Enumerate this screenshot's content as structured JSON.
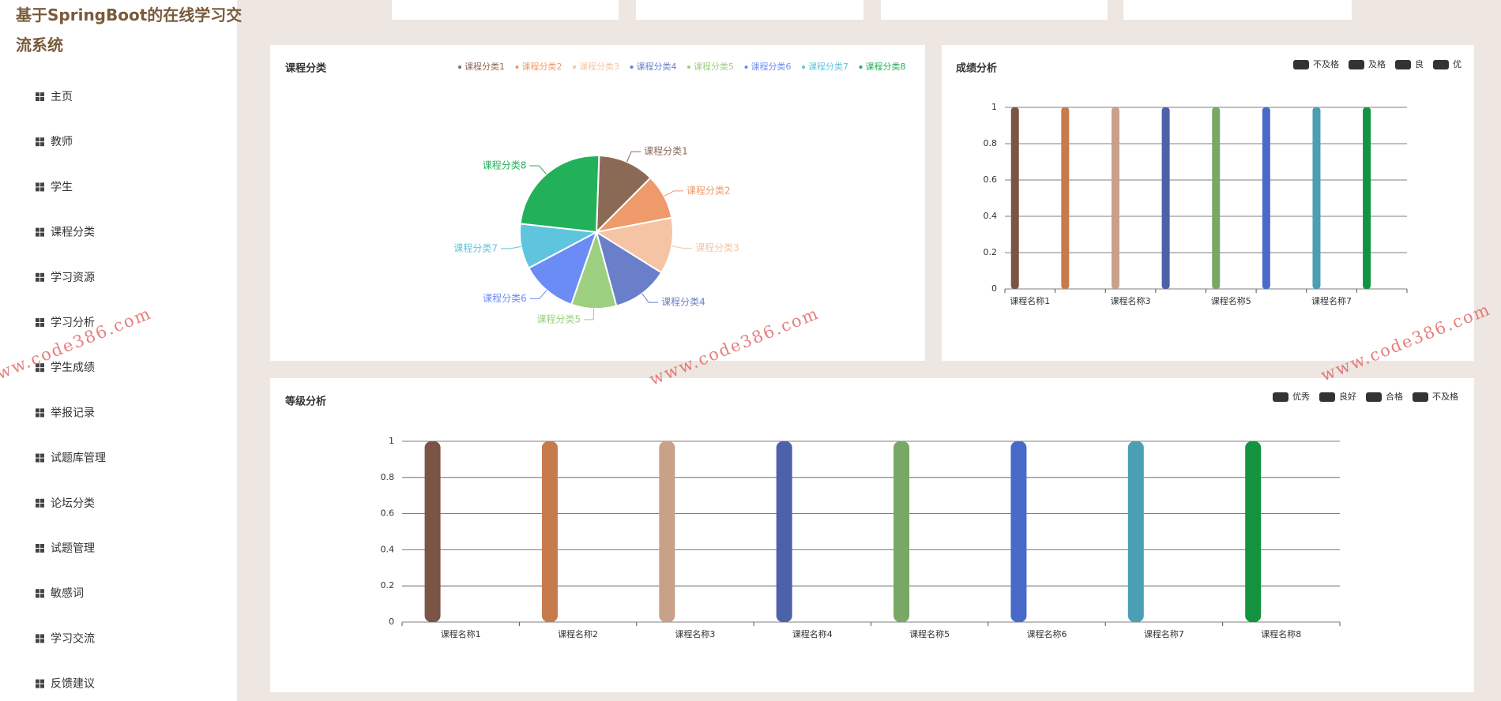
{
  "sidebar": {
    "title": "基于SpringBoot的在线学习交流系统",
    "menu": [
      "主页",
      "教师",
      "学生",
      "课程分类",
      "学习资源",
      "学习分析",
      "学生成绩",
      "举报记录",
      "试题库管理",
      "论坛分类",
      "试题管理",
      "敏感词",
      "学习交流",
      "反馈建议"
    ]
  },
  "watermark": "www.code386.com",
  "chart_data": [
    {
      "type": "pie",
      "title": "课程分类",
      "categories": [
        "课程分类1",
        "课程分类2",
        "课程分类3",
        "课程分类4",
        "课程分类5",
        "课程分类6",
        "课程分类7",
        "课程分类8"
      ],
      "values": [
        5,
        4,
        5,
        5,
        4,
        5,
        4,
        10
      ],
      "colors": [
        "#8b6a55",
        "#ee9a6a",
        "#f5c4a5",
        "#6a7fc9",
        "#9ccf7f",
        "#6b8cf5",
        "#5fc5de",
        "#22b159"
      ]
    },
    {
      "type": "bar",
      "title": "成绩分析",
      "categories": [
        "课程名称1",
        null,
        "课程名称3",
        null,
        "课程名称5",
        null,
        "课程名称7",
        null
      ],
      "values": [
        1,
        1,
        1,
        1,
        1,
        1,
        1,
        1
      ],
      "colors": [
        "#7a5444",
        "#c77a4c",
        "#c9a088",
        "#4d61a8",
        "#79a866",
        "#4a6acb",
        "#4a9fb5",
        "#139340"
      ],
      "legend": [
        "不及格",
        "及格",
        "良",
        "优"
      ],
      "legend_color": "#333333",
      "ylim": [
        0,
        1
      ],
      "yticks": [
        0,
        0.2,
        0.4,
        0.6,
        0.8,
        1
      ],
      "grid": true
    },
    {
      "type": "bar",
      "title": "等级分析",
      "categories": [
        "课程名称1",
        "课程名称2",
        "课程名称3",
        "课程名称4",
        "课程名称5",
        "课程名称6",
        "课程名称7",
        "课程名称8"
      ],
      "values": [
        1,
        1,
        1,
        1,
        1,
        1,
        1,
        1
      ],
      "colors": [
        "#7a5444",
        "#c77a4c",
        "#c9a088",
        "#4d61a8",
        "#79a866",
        "#4a6acb",
        "#4a9fb5",
        "#139340"
      ],
      "legend": [
        "优秀",
        "良好",
        "合格",
        "不及格"
      ],
      "legend_color": "#333333",
      "ylim": [
        0,
        1
      ],
      "yticks": [
        0,
        0.2,
        0.4,
        0.6,
        0.8,
        1
      ],
      "grid": true
    }
  ]
}
